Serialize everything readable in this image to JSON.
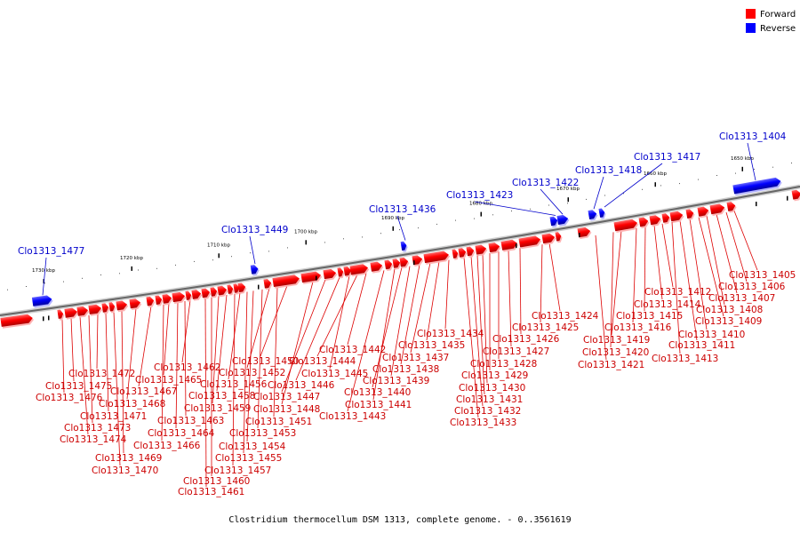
{
  "legend": {
    "forward": {
      "label": "Forward",
      "color": "#ff0000"
    },
    "reverse": {
      "label": "Reverse",
      "color": "#0000ff"
    }
  },
  "caption": "Clostridium thermocellum DSM 1313, complete genome. - 0..3561619",
  "scale_ticks": [
    "1650 kbp",
    "1660 kbp",
    "1670 kbp",
    "1680 kbp",
    "1690 kbp",
    "1700 kbp",
    "1710 kbp",
    "1720 kbp",
    "1730 kbp"
  ],
  "reverse_genes": [
    "Clo1313_1404",
    "Clo1313_1417",
    "Clo1313_1418",
    "Clo1313_1422",
    "Clo1313_1423",
    "Clo1313_1436",
    "Clo1313_1449",
    "Clo1313_1477"
  ],
  "forward_genes": [
    "Clo1313_1405",
    "Clo1313_1406",
    "Clo1313_1407",
    "Clo1313_1408",
    "Clo1313_1409",
    "Clo1313_1410",
    "Clo1313_1411",
    "Clo1313_1412",
    "Clo1313_1413",
    "Clo1313_1414",
    "Clo1313_1415",
    "Clo1313_1416",
    "Clo1313_1419",
    "Clo1313_1420",
    "Clo1313_1421",
    "Clo1313_1424",
    "Clo1313_1425",
    "Clo1313_1426",
    "Clo1313_1427",
    "Clo1313_1428",
    "Clo1313_1429",
    "Clo1313_1430",
    "Clo1313_1431",
    "Clo1313_1432",
    "Clo1313_1433",
    "Clo1313_1434",
    "Clo1313_1435",
    "Clo1313_1437",
    "Clo1313_1438",
    "Clo1313_1439",
    "Clo1313_1440",
    "Clo1313_1441",
    "Clo1313_1442",
    "Clo1313_1443",
    "Clo1313_1444",
    "Clo1313_1445",
    "Clo1313_1446",
    "Clo1313_1447",
    "Clo1313_1448",
    "Clo1313_1450",
    "Clo1313_1451",
    "Clo1313_1452",
    "Clo1313_1453",
    "Clo1313_1454",
    "Clo1313_1455",
    "Clo1313_1456",
    "Clo1313_1457",
    "Clo1313_1458",
    "Clo1313_1459",
    "Clo1313_1460",
    "Clo1313_1461",
    "Clo1313_1462",
    "Clo1313_1463",
    "Clo1313_1464",
    "Clo1313_1465",
    "Clo1313_1466",
    "Clo1313_1467",
    "Clo1313_1468",
    "Clo1313_1469",
    "Clo1313_1470",
    "Clo1313_1471",
    "Clo1313_1472",
    "Clo1313_1473",
    "Clo1313_1474",
    "Clo1313_1475",
    "Clo1313_1476"
  ]
}
